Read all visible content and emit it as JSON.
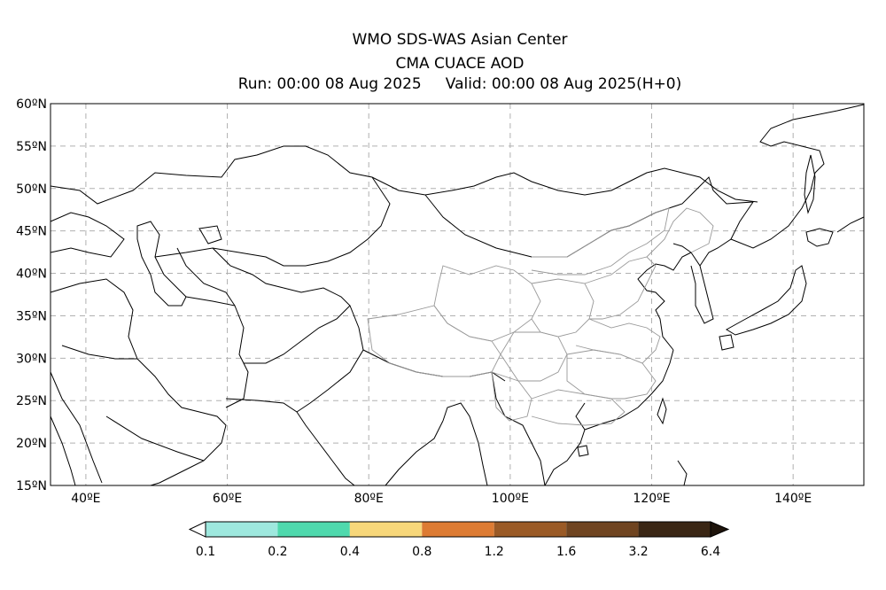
{
  "header": {
    "title": "WMO SDS-WAS Asian Center",
    "subtitle": "CMA CUACE AOD",
    "run_line": "Run: 00:00 08 Aug 2025     Valid: 00:00 08 Aug 2025(H+0)"
  },
  "map": {
    "lon_range": [
      35,
      150
    ],
    "lat_range": [
      15,
      60
    ],
    "lon_ticks": [
      {
        "value": 40,
        "label": "40ºE"
      },
      {
        "value": 60,
        "label": "60ºE"
      },
      {
        "value": 80,
        "label": "80ºE"
      },
      {
        "value": 100,
        "label": "100ºE"
      },
      {
        "value": 120,
        "label": "120ºE"
      },
      {
        "value": 140,
        "label": "140ºE"
      }
    ],
    "lat_ticks": [
      {
        "value": 15,
        "label": "15ºN"
      },
      {
        "value": 20,
        "label": "20ºN"
      },
      {
        "value": 25,
        "label": "25ºN"
      },
      {
        "value": 30,
        "label": "30ºN"
      },
      {
        "value": 35,
        "label": "35ºN"
      },
      {
        "value": 40,
        "label": "40ºN"
      },
      {
        "value": 45,
        "label": "45ºN"
      },
      {
        "value": 50,
        "label": "50ºN"
      },
      {
        "value": 55,
        "label": "55ºN"
      },
      {
        "value": 60,
        "label": "60ºN"
      }
    ],
    "grid": true,
    "grid_style": "dashed",
    "border_color": "#000000",
    "province_color": "#999999"
  },
  "colorbar": {
    "boundaries": [
      "0.1",
      "0.2",
      "0.4",
      "0.8",
      "1.2",
      "1.6",
      "3.2",
      "6.4"
    ],
    "colors": [
      "#9ee8de",
      "#4fd9ad",
      "#f7d77a",
      "#dd7b33",
      "#9a5a26",
      "#6f4420",
      "#3a2614"
    ],
    "under_color": "#ffffff",
    "over_color": "#1e140b"
  }
}
